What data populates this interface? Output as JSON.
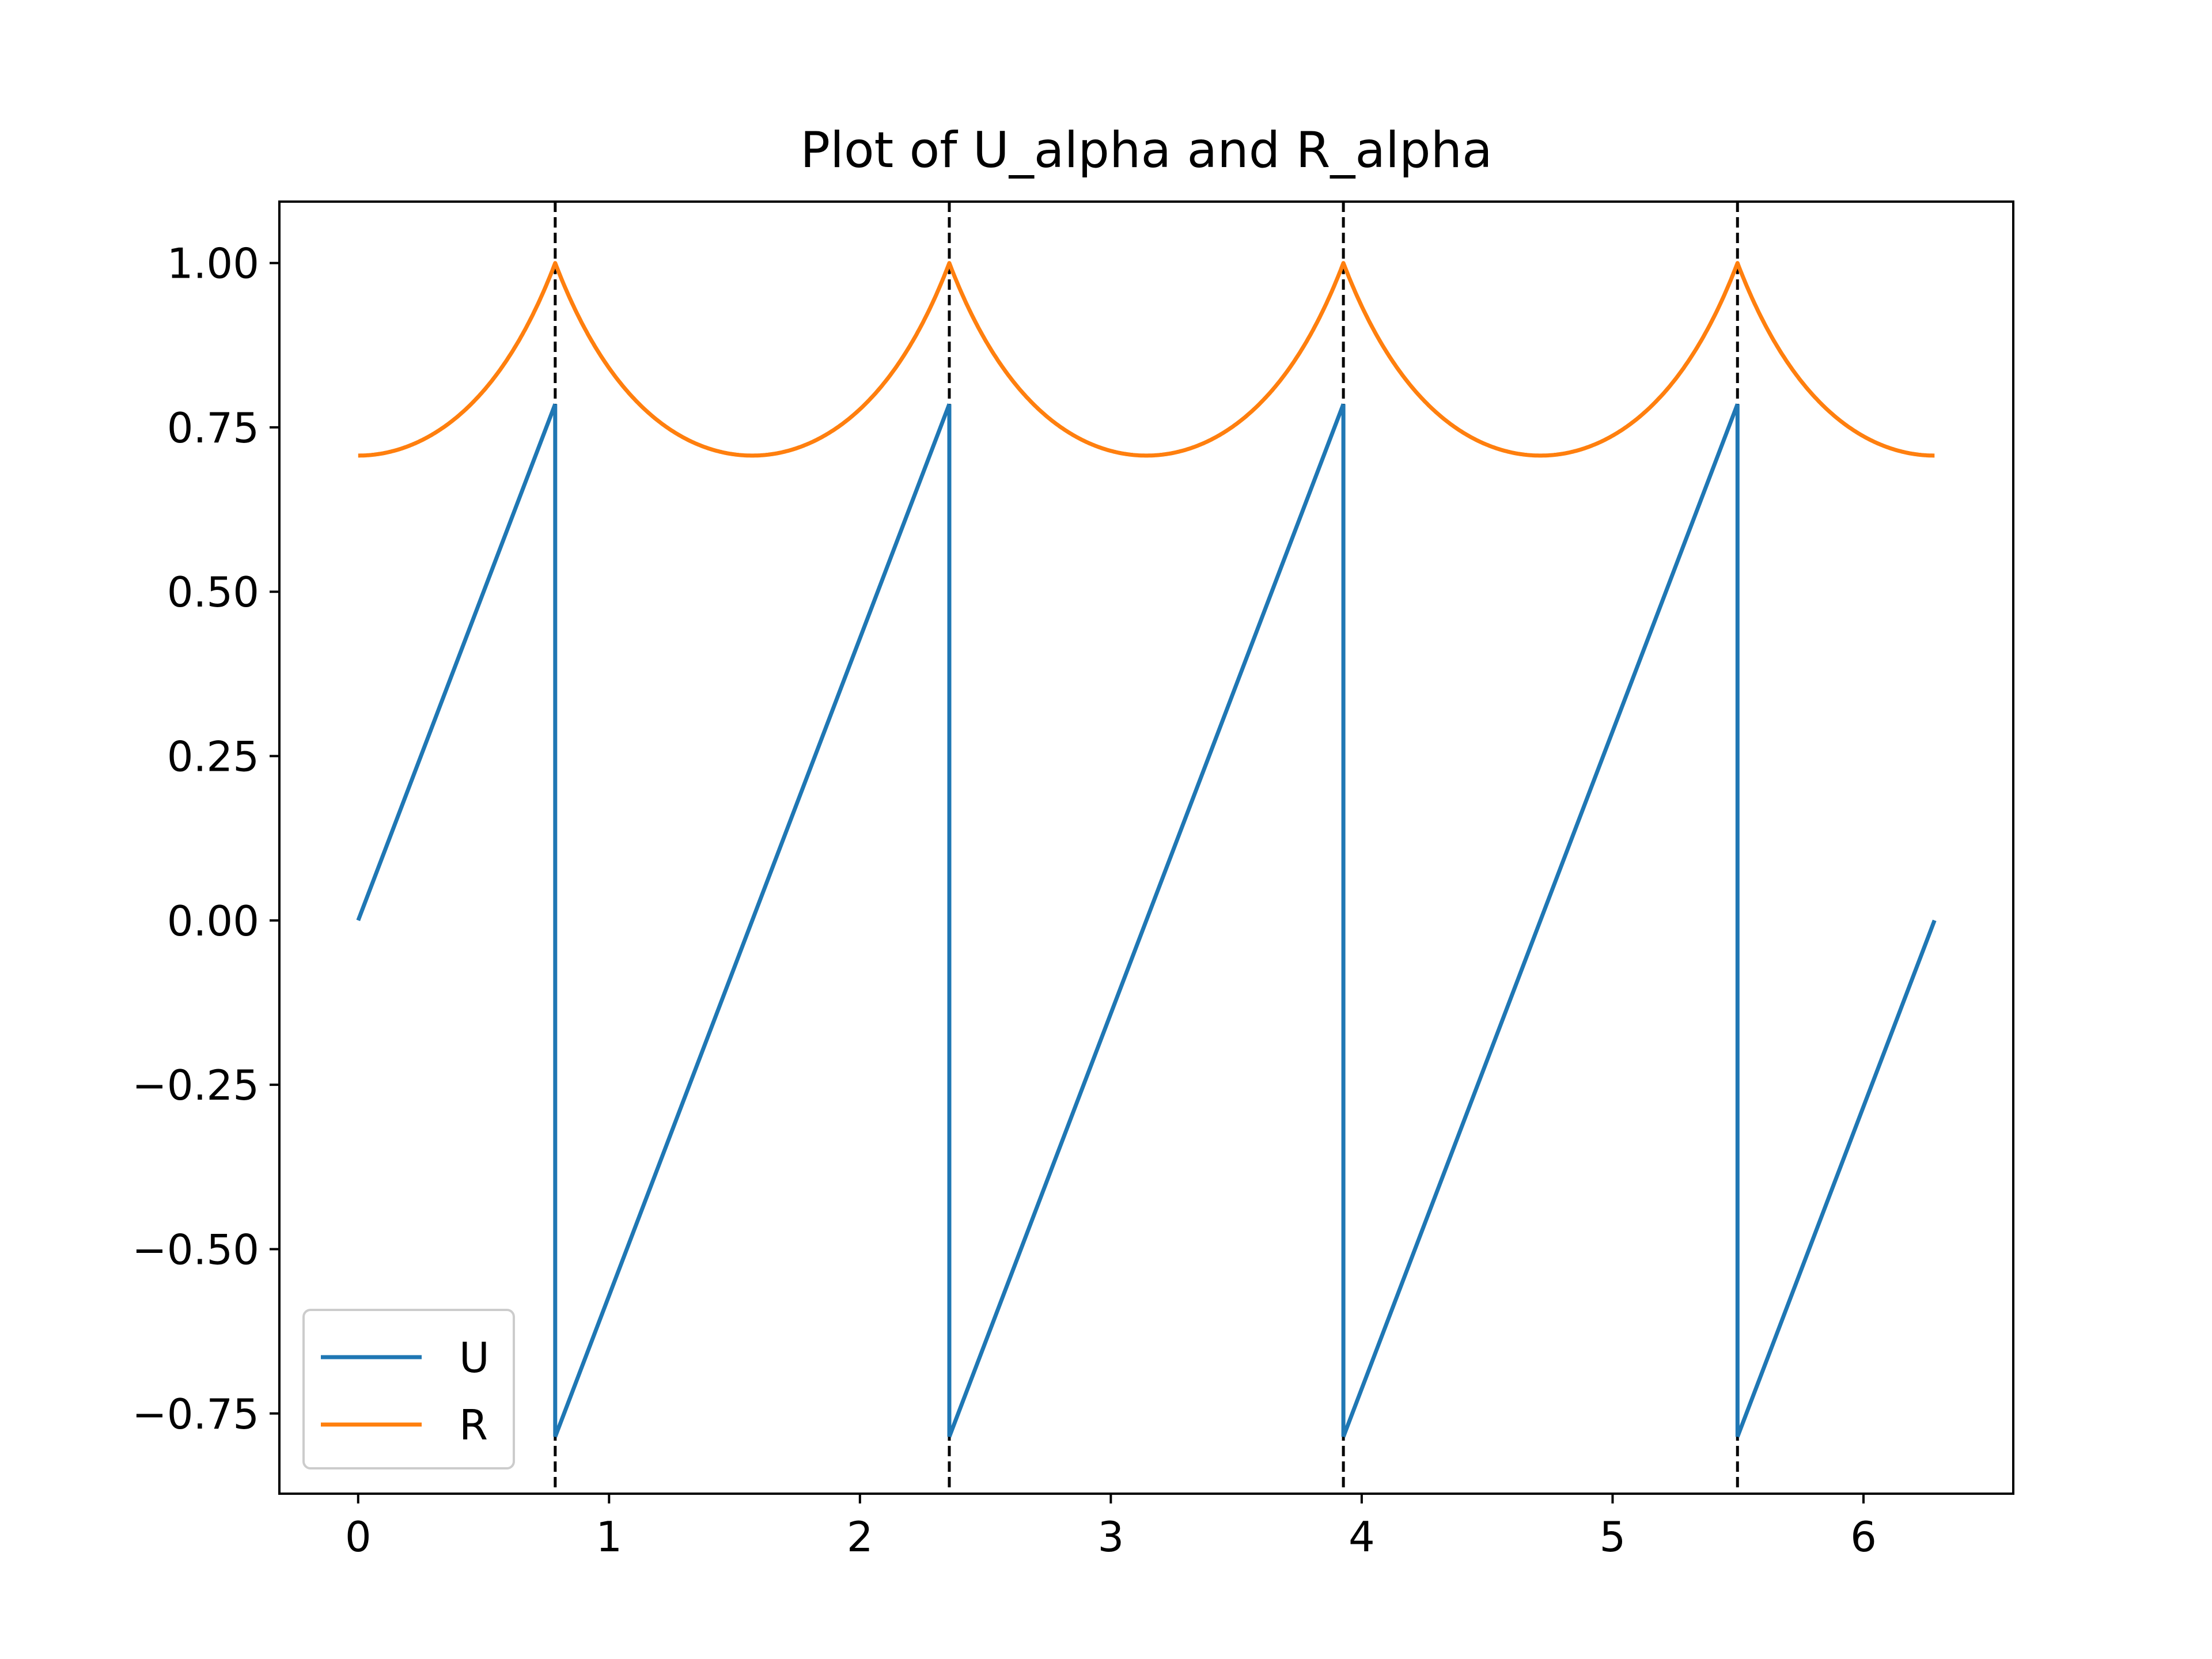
{
  "chart_data": {
    "type": "line",
    "title": "Plot of U_alpha and R_alpha",
    "xlabel": "",
    "ylabel": "",
    "xlim": [
      -0.314,
      6.597
    ],
    "ylim": [
      -0.872,
      1.0934
    ],
    "x_ticks": [
      0,
      1,
      2,
      3,
      4,
      5,
      6
    ],
    "x_tick_labels": [
      "0",
      "1",
      "2",
      "3",
      "4",
      "5",
      "6"
    ],
    "y_ticks": [
      1.0,
      0.75,
      0.5,
      0.25,
      0.0,
      -0.25,
      -0.5,
      -0.75
    ],
    "y_tick_labels": [
      "1.00",
      "0.75",
      "0.50",
      "0.25",
      "0.00",
      "−0.25",
      "−0.50",
      "−0.75"
    ],
    "grid": false,
    "legend_placement": "lower-left",
    "vertical_lines": {
      "x": [
        0.7854,
        2.3562,
        3.927,
        5.4978
      ],
      "style": "dashed",
      "color": "#000000"
    },
    "series": [
      {
        "name": "U",
        "color": "#1f77b4",
        "segments": [
          [
            [
              0,
              0
            ],
            [
              0.7854,
              0.7854
            ]
          ],
          [
            [
              0.7854,
              -0.7854
            ],
            [
              2.3562,
              0.7854
            ]
          ],
          [
            [
              2.3562,
              -0.7854
            ],
            [
              3.927,
              0.7854
            ]
          ],
          [
            [
              3.927,
              -0.7854
            ],
            [
              5.4978,
              0.7854
            ]
          ],
          [
            [
              5.4978,
              -0.7854
            ],
            [
              6.2832,
              0
            ]
          ]
        ]
      },
      {
        "name": "R",
        "color": "#ff7f0e",
        "x_range": [
          0,
          6.2832
        ],
        "formula": "1/sqrt(2) * 1/cos(u) for u = wrapped angle in [-pi/4, pi/4]",
        "period": 1.5708,
        "min": 0.7071,
        "max": 1.0
      }
    ]
  }
}
